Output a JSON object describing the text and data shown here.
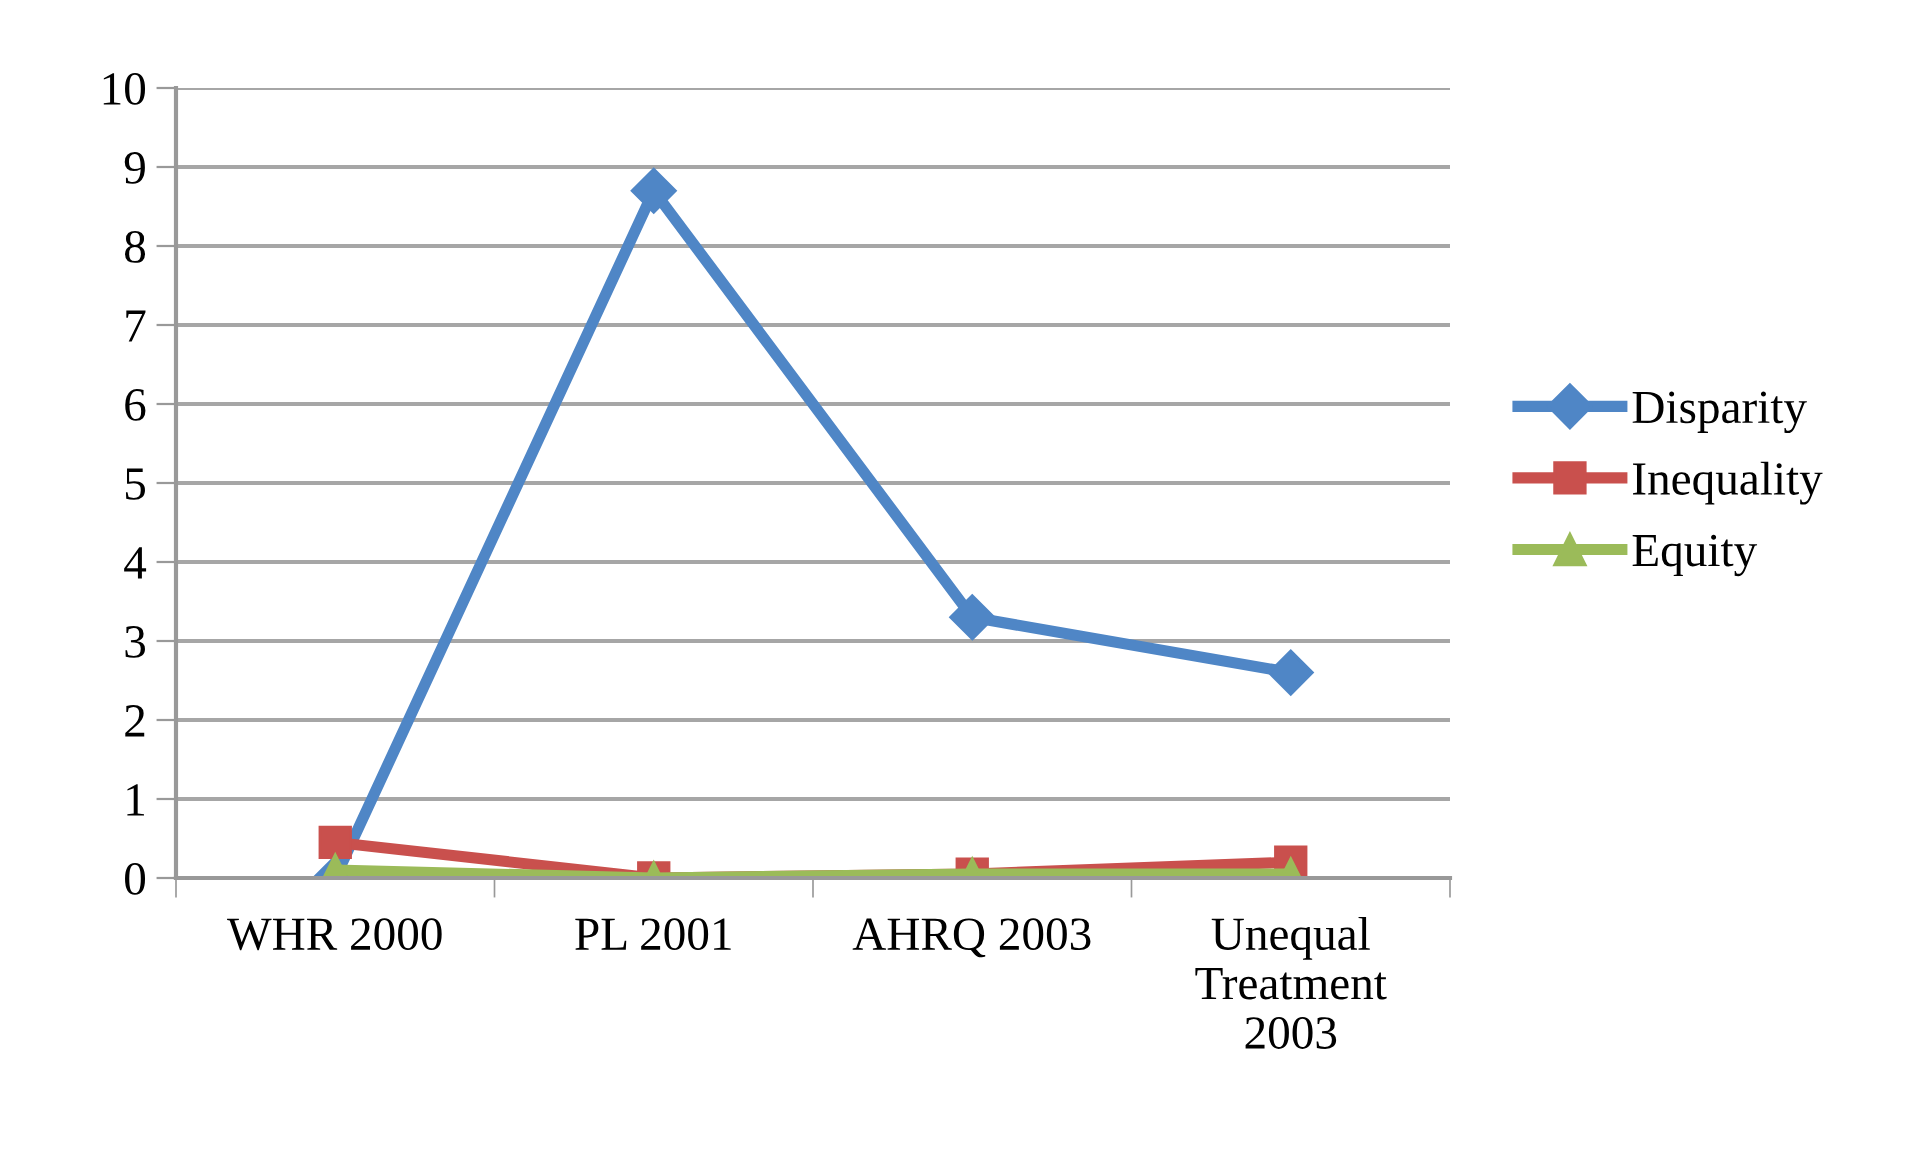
{
  "chart_data": {
    "type": "line",
    "categories": [
      "WHR 2000",
      "PL 2001",
      "AHRQ 2003",
      "Unequal\nTreatment\n2003"
    ],
    "series": [
      {
        "name": "Disparity",
        "color": "#4f86c6",
        "marker": "diamond",
        "values": [
          0,
          8.7,
          3.3,
          2.6
        ]
      },
      {
        "name": "Inequality",
        "color": "#c9504d",
        "marker": "square",
        "values": [
          0.45,
          0,
          0.05,
          0.2
        ]
      },
      {
        "name": "Equity",
        "color": "#9bbb59",
        "marker": "triangle",
        "values": [
          0.1,
          0,
          0.05,
          0.05
        ]
      }
    ],
    "ylim": [
      0,
      10
    ],
    "yticks": [
      0,
      1,
      2,
      3,
      4,
      5,
      6,
      7,
      8,
      9,
      10
    ],
    "grid": "y",
    "legend": "right",
    "line_style": "solid"
  }
}
